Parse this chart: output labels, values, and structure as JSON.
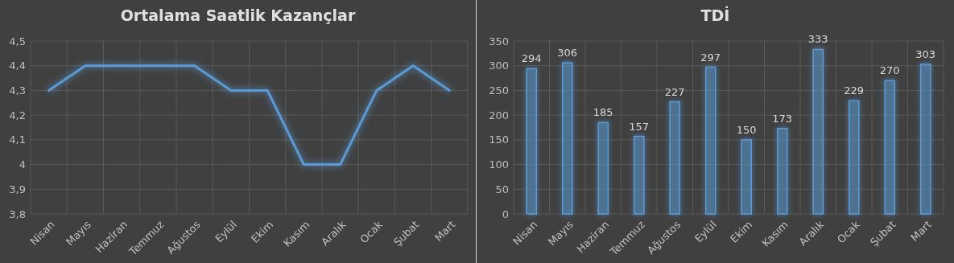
{
  "chart_data": [
    {
      "type": "line",
      "title": "Ortalama Saatlik Kazançlar",
      "categories": [
        "Nisan",
        "Mayıs",
        "Haziran",
        "Temmuz",
        "Ağustos",
        "Eylül",
        "Ekim",
        "Kasım",
        "Aralık",
        "Ocak",
        "Şubat",
        "Mart"
      ],
      "series": [
        {
          "color": "#5b9bd5",
          "values": [
            4.3,
            4.4,
            4.4,
            4.4,
            4.4,
            4.3,
            4.3,
            4.0,
            4.0,
            4.3,
            4.4,
            4.3
          ]
        }
      ],
      "ylim": [
        3.8,
        4.5
      ],
      "yticks": [
        {
          "value": 3.8,
          "label": "3,8"
        },
        {
          "value": 3.9,
          "label": "3,9"
        },
        {
          "value": 4,
          "label": "4"
        },
        {
          "value": 4.1,
          "label": "4,1"
        },
        {
          "value": 4.2,
          "label": "4,2"
        },
        {
          "value": 4.3,
          "label": "4,3"
        },
        {
          "value": 4.4,
          "label": "4,4"
        },
        {
          "value": 4.5,
          "label": "4,5"
        }
      ],
      "grid": true,
      "marker": "none"
    },
    {
      "type": "bar",
      "title": "TDİ",
      "categories": [
        "Nisan",
        "Mayıs",
        "Haziran",
        "Temmuz",
        "Ağustos",
        "Eylül",
        "Ekim",
        "Kasım",
        "Aralık",
        "Ocak",
        "Şubat",
        "Mart"
      ],
      "series": [
        {
          "color": "#5b9bd5",
          "values": [
            294,
            306,
            185,
            157,
            227,
            297,
            150,
            173,
            333,
            229,
            270,
            303
          ]
        }
      ],
      "ylim": [
        0,
        350
      ],
      "yticks": [
        0,
        50,
        100,
        150,
        200,
        250,
        300,
        350
      ],
      "grid": true,
      "data_labels": true
    }
  ]
}
